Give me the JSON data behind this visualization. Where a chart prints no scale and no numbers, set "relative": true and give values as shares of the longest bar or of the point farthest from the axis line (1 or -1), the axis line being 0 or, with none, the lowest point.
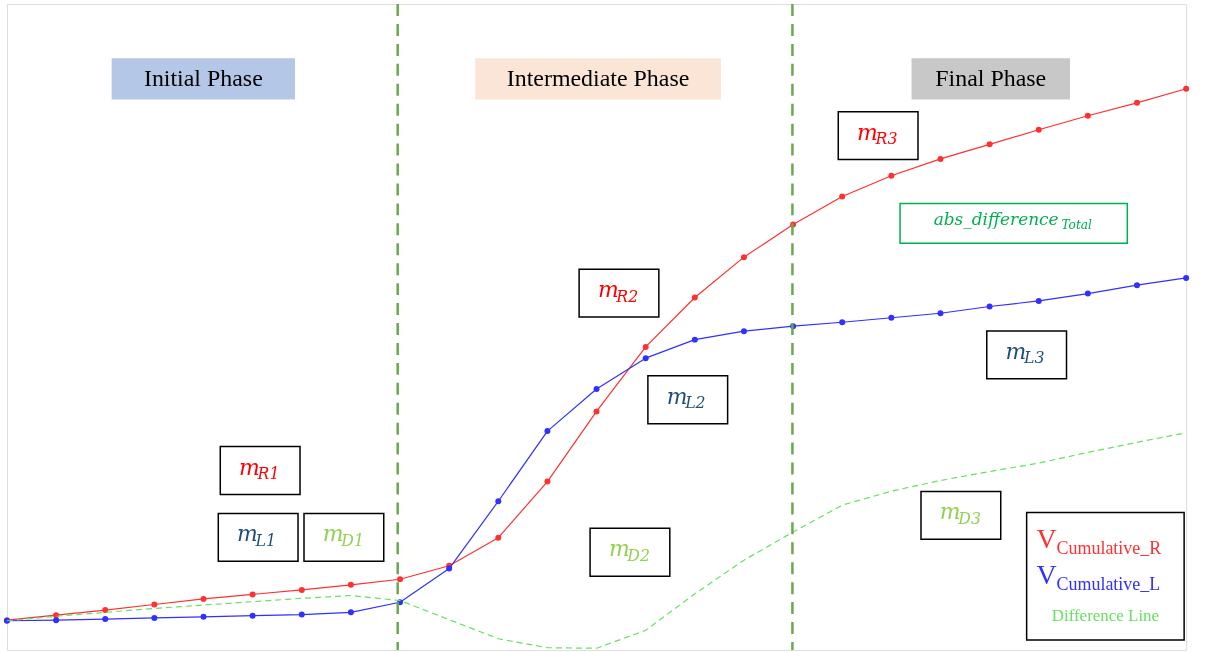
{
  "chart_data": {
    "type": "line",
    "relative": true,
    "categories": [
      null,
      null,
      null,
      null,
      null,
      null,
      null,
      null,
      null,
      null,
      null,
      null,
      null,
      null,
      null,
      null,
      null,
      null,
      null,
      null,
      null,
      null,
      null,
      null,
      null
    ],
    "series": [
      {
        "name": "V$_{Cumulative_R}$",
        "color": "#ff3030",
        "marker": "circle",
        "line_style": "solid",
        "values": [
          0.053,
          0.062,
          0.071,
          0.081,
          0.091,
          0.099,
          0.107,
          0.116,
          0.126,
          0.15,
          0.2,
          0.3,
          0.425,
          0.54,
          0.628,
          0.7,
          0.758,
          0.808,
          0.845,
          0.875,
          0.901,
          0.927,
          0.952,
          0.975,
          1.0
        ]
      },
      {
        "name": "V$_{Cumulative_L}$",
        "color": "#3030ff",
        "marker": "circle",
        "line_style": "solid",
        "values": [
          0.052,
          0.053,
          0.055,
          0.057,
          0.059,
          0.061,
          0.063,
          0.067,
          0.085,
          0.145,
          0.265,
          0.39,
          0.465,
          0.52,
          0.553,
          0.568,
          0.577,
          0.584,
          0.592,
          0.6,
          0.612,
          0.622,
          0.635,
          0.65,
          0.663
        ]
      },
      {
        "name": "Difference Line",
        "color": "#66e060",
        "marker": "none",
        "line_style": "dashed",
        "values": [
          0.052,
          0.06,
          0.067,
          0.074,
          0.08,
          0.086,
          0.092,
          0.097,
          0.088,
          0.054,
          0.02,
          0.004,
          0.003,
          0.035,
          0.1,
          0.16,
          0.21,
          0.258,
          0.283,
          0.302,
          0.318,
          0.333,
          0.352,
          0.37,
          0.387
        ]
      }
    ],
    "annotations": [
      "Initial Phase",
      "Intermediate Phase",
      "Final Phase",
      "m$_{R1}$",
      "m$_{L1}$",
      "m$_{D1}$",
      "m$_{R2}$",
      "m$_{L2}$",
      "m$_{D2}$",
      "m$_{R3}$",
      "m$_{L3}$",
      "m$_{D3}$",
      "abs_difference$_{Total}$"
    ],
    "legend": "bottom right"
  }
}
